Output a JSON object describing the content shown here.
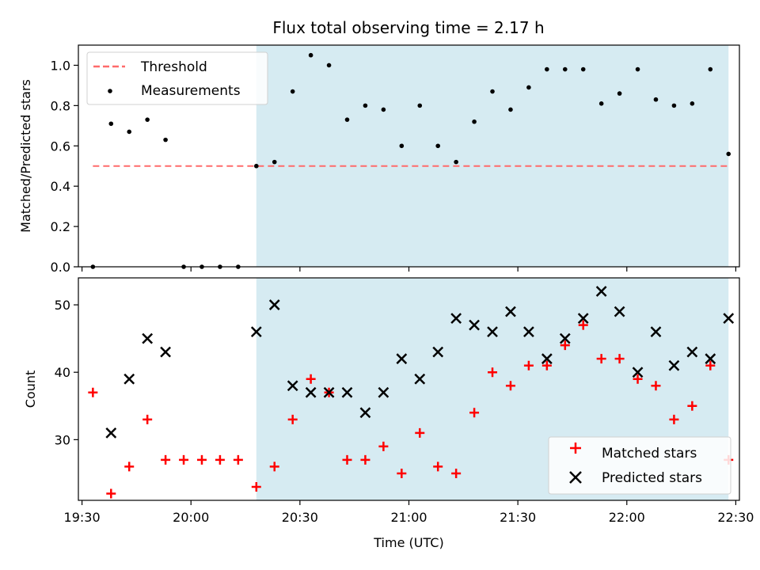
{
  "title": "Flux total observing time = 2.17 h",
  "colors": {
    "span": "#add8e6",
    "threshold": "#ff6b6b",
    "measurement": "#000000",
    "matched": "#ff0000",
    "predicted": "#000000"
  },
  "x_tick_labels": [
    "19:30",
    "20:00",
    "20:30",
    "21:00",
    "21:30",
    "22:00",
    "22:30"
  ],
  "chart_data": [
    {
      "type": "scatter",
      "panel": "top",
      "ylabel": "Matched/Predicted stars",
      "xlabel": "",
      "x_unit": "time (UTC)",
      "xlim": [
        "19:29",
        "22:31"
      ],
      "ylim": [
        0,
        1.1
      ],
      "yticks": [
        "0.0",
        "0.2",
        "0.4",
        "0.6",
        "0.8",
        "1.0"
      ],
      "shaded_span": [
        "20:18",
        "22:28"
      ],
      "threshold": {
        "name": "Threshold",
        "value": 0.5,
        "x_range": [
          "19:33",
          "22:28"
        ],
        "style": "dashed"
      },
      "legend": {
        "placement": "top-left",
        "entries": [
          "Threshold",
          "Measurements"
        ]
      },
      "series": [
        {
          "name": "Measurements",
          "marker": "dot",
          "x": [
            "19:33",
            "19:38",
            "19:43",
            "19:48",
            "19:53",
            "19:58",
            "20:03",
            "20:08",
            "20:13",
            "20:18",
            "20:23",
            "20:28",
            "20:33",
            "20:38",
            "20:43",
            "20:48",
            "20:53",
            "20:58",
            "21:03",
            "21:08",
            "21:13",
            "21:18",
            "21:23",
            "21:28",
            "21:33",
            "21:38",
            "21:43",
            "21:48",
            "21:53",
            "21:58",
            "22:03",
            "22:08",
            "22:13",
            "22:18",
            "22:23",
            "22:28"
          ],
          "y": [
            0.0,
            0.71,
            0.67,
            0.73,
            0.63,
            0.0,
            0.0,
            0.0,
            0.0,
            0.5,
            0.52,
            0.87,
            1.05,
            1.0,
            0.73,
            0.8,
            0.78,
            0.6,
            0.8,
            0.6,
            0.52,
            0.72,
            0.87,
            0.78,
            0.89,
            0.98,
            0.98,
            0.98,
            0.81,
            0.86,
            0.98,
            0.83,
            0.8,
            0.81,
            0.98,
            0.56
          ]
        }
      ]
    },
    {
      "type": "scatter",
      "panel": "bottom",
      "ylabel": "Count",
      "xlabel": "Time (UTC)",
      "xlim": [
        "19:29",
        "22:31"
      ],
      "ylim": [
        21,
        54
      ],
      "yticks": [
        "30",
        "40",
        "50"
      ],
      "shaded_span": [
        "20:18",
        "22:28"
      ],
      "legend": {
        "placement": "bottom-right",
        "entries": [
          "Matched stars",
          "Predicted stars"
        ]
      },
      "series": [
        {
          "name": "Matched stars",
          "marker": "plus",
          "x": [
            "19:33",
            "19:38",
            "19:43",
            "19:48",
            "19:53",
            "19:58",
            "20:03",
            "20:08",
            "20:13",
            "20:18",
            "20:23",
            "20:28",
            "20:33",
            "20:38",
            "20:43",
            "20:48",
            "20:53",
            "20:58",
            "21:03",
            "21:08",
            "21:13",
            "21:18",
            "21:23",
            "21:28",
            "21:33",
            "21:38",
            "21:43",
            "21:48",
            "21:53",
            "21:58",
            "22:03",
            "22:08",
            "22:13",
            "22:18",
            "22:23",
            "22:28"
          ],
          "y": [
            37,
            22,
            26,
            33,
            27,
            27,
            27,
            27,
            27,
            23,
            26,
            33,
            39,
            37,
            27,
            27,
            29,
            25,
            31,
            26,
            25,
            34,
            40,
            38,
            41,
            41,
            44,
            47,
            42,
            42,
            39,
            38,
            33,
            35,
            41,
            27
          ]
        },
        {
          "name": "Predicted stars",
          "marker": "x",
          "x": [
            "19:38",
            "19:43",
            "19:48",
            "19:53",
            "20:18",
            "20:23",
            "20:28",
            "20:33",
            "20:38",
            "20:43",
            "20:48",
            "20:53",
            "20:58",
            "21:03",
            "21:08",
            "21:13",
            "21:18",
            "21:23",
            "21:28",
            "21:33",
            "21:38",
            "21:43",
            "21:48",
            "21:53",
            "21:58",
            "22:03",
            "22:08",
            "22:13",
            "22:18",
            "22:23",
            "22:28"
          ],
          "y": [
            31,
            39,
            45,
            43,
            46,
            50,
            38,
            37,
            37,
            37,
            34,
            37,
            42,
            39,
            43,
            48,
            47,
            46,
            49,
            46,
            42,
            45,
            48,
            52,
            49,
            40,
            46,
            41,
            43,
            42,
            48
          ]
        }
      ]
    }
  ]
}
